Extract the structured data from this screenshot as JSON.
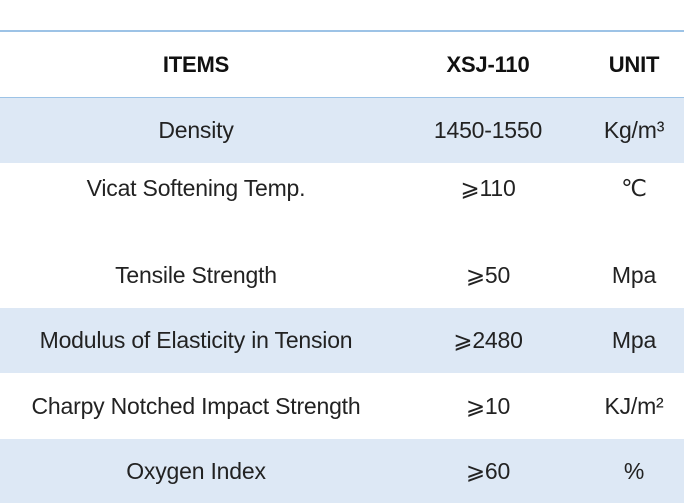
{
  "table": {
    "headers": [
      "ITEMS",
      "XSJ-110",
      "UNIT"
    ],
    "rows": [
      {
        "item": "Density",
        "value": "1450-1550",
        "unit": "Kg/m³"
      },
      {
        "item": "Vicat Softening Temp.",
        "value": "⩾110",
        "unit": "℃"
      },
      {
        "item": "Tensile Strength",
        "value": "⩾50",
        "unit": "Mpa"
      },
      {
        "item": "Modulus of Elasticity in Tension",
        "value": "⩾2480",
        "unit": "Mpa"
      },
      {
        "item": "Charpy Notched Impact Strength",
        "value": "⩾10",
        "unit": "KJ/m²"
      },
      {
        "item": "Oxygen Index",
        "value": "⩾60",
        "unit": "%"
      }
    ]
  }
}
